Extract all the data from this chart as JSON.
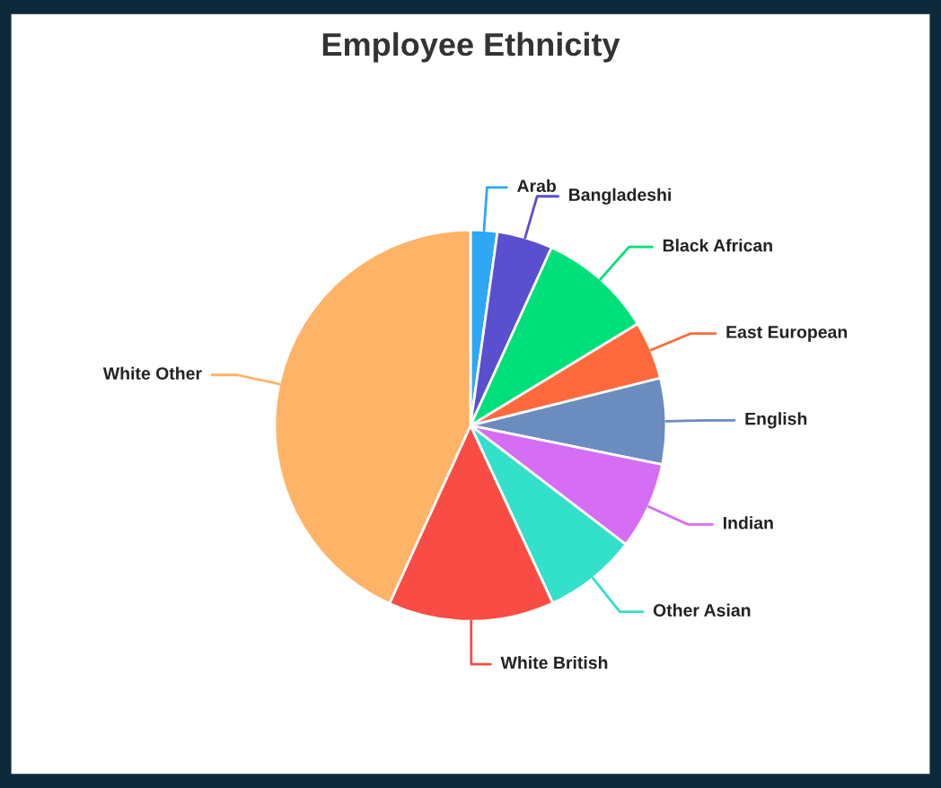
{
  "chart_data": {
    "type": "pie",
    "title": "Employee Ethnicity",
    "categories": [
      "Arab",
      "Bangladeshi",
      "Black African",
      "East European",
      "English",
      "Indian",
      "Other Asian",
      "White British",
      "White Other"
    ],
    "values": [
      2.2,
      4.6,
      9.5,
      4.8,
      7.1,
      7.2,
      7.7,
      13.7,
      43.2
    ],
    "colors": [
      "#2ea8f5",
      "#5a4fcf",
      "#00e07a",
      "#ff6a3d",
      "#6b8cbf",
      "#d56ef5",
      "#33e0c9",
      "#f94c44",
      "#ffb366"
    ],
    "legend": false
  }
}
